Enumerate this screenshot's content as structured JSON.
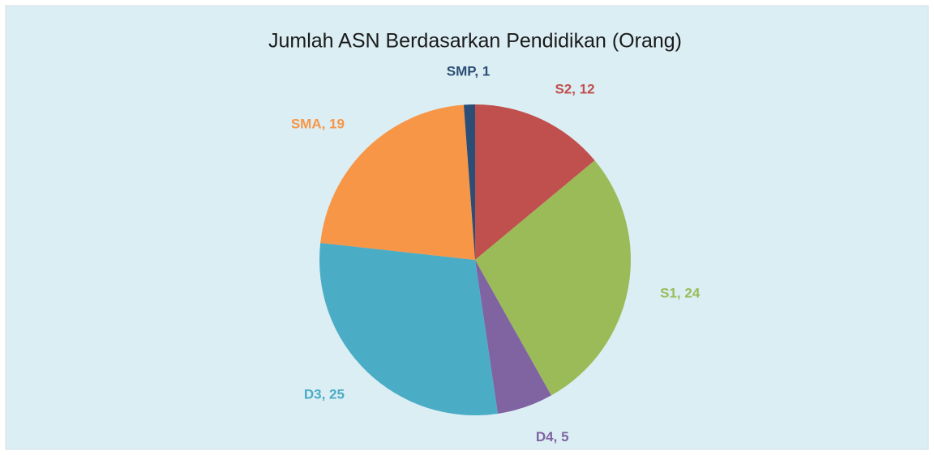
{
  "chart_data": {
    "type": "pie",
    "title": "Jumlah ASN Berdasarkan Pendidikan (Orang)",
    "categories": [
      "S2",
      "S1",
      "D4",
      "D3",
      "SMA",
      "SMP"
    ],
    "values": [
      12,
      24,
      5,
      25,
      19,
      1
    ],
    "value_labels": [
      "S2, 12",
      "S1, 24",
      "D4, 5",
      "D3, 25",
      "SMA, 19",
      "SMP, 1"
    ],
    "colors": [
      "#c0504d",
      "#9bbb59",
      "#8064a2",
      "#4bacc6",
      "#f79646",
      "#2c4d75"
    ]
  }
}
